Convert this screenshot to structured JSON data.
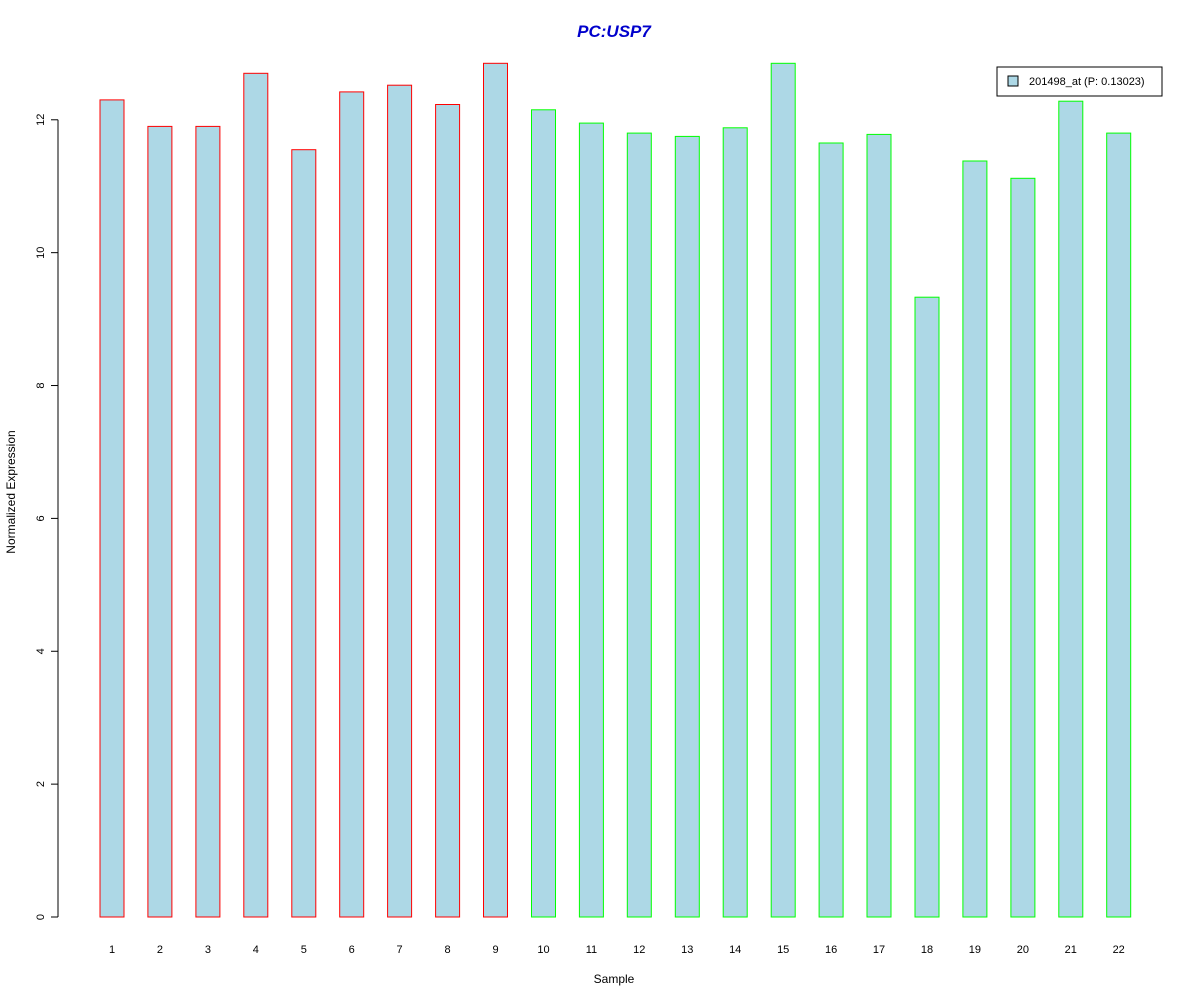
{
  "chart_data": {
    "type": "bar",
    "title": "PC:USP7",
    "xlabel": "Sample",
    "ylabel": "Normalized Expression",
    "categories": [
      "1",
      "2",
      "3",
      "4",
      "5",
      "6",
      "7",
      "8",
      "9",
      "10",
      "11",
      "12",
      "13",
      "14",
      "15",
      "16",
      "17",
      "18",
      "19",
      "20",
      "21",
      "22"
    ],
    "series": [
      {
        "name": "201498_at (P: 0.13023)",
        "values": [
          12.3,
          11.9,
          11.9,
          12.7,
          11.55,
          12.42,
          12.52,
          12.23,
          12.85,
          12.15,
          11.95,
          11.8,
          11.75,
          11.88,
          12.85,
          11.65,
          11.78,
          9.33,
          11.38,
          11.12,
          12.28,
          11.8
        ]
      }
    ],
    "ylim": [
      0,
      12.9
    ],
    "yticks": [
      0,
      2,
      4,
      6,
      8,
      10,
      12
    ],
    "grid": false,
    "legend_position": "top-right",
    "colors": {
      "bar_fill": "#add8e6",
      "group1_border": "#ff0000",
      "group2_border": "#00ff00",
      "title": "#0000cc"
    },
    "group1_count": 9
  }
}
